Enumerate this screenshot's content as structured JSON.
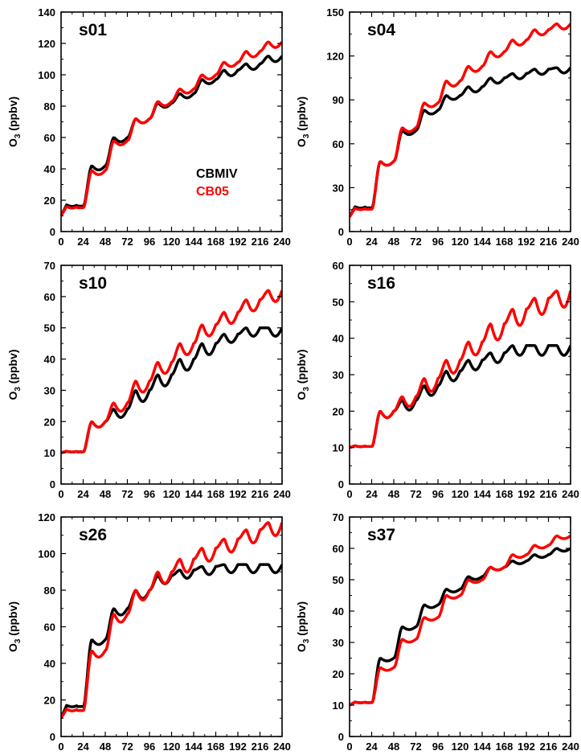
{
  "colors": {
    "CBMIV": "#000000",
    "CB05": "#ff0000"
  },
  "legend": [
    {
      "name": "CBMIV",
      "color": "#000000"
    },
    {
      "name": "CB05",
      "color": "#ff0000"
    }
  ],
  "ylabel": {
    "main": "O",
    "sub": "3",
    "rest": " (ppbv)"
  },
  "chart_data": [
    {
      "type": "line",
      "id": "s01",
      "title": "s01",
      "xlim": [
        0,
        240
      ],
      "ylim": [
        0,
        140
      ],
      "xticks": [
        0,
        24,
        48,
        72,
        96,
        120,
        144,
        168,
        192,
        216,
        240
      ],
      "yticks": [
        0,
        20,
        40,
        60,
        80,
        100,
        120,
        140
      ],
      "grid": false,
      "series": [
        {
          "name": "CBMIV",
          "day_vals": [
            10,
            17,
            42,
            60,
            72,
            82,
            88,
            97,
            103,
            107,
            112
          ],
          "swing": [
            2,
            3,
            3,
            3,
            3,
            3,
            3,
            4,
            4,
            4
          ]
        },
        {
          "name": "CB05",
          "day_vals": [
            10,
            16,
            39,
            58,
            72,
            83,
            91,
            100,
            108,
            115,
            121
          ],
          "swing": [
            2,
            3,
            3,
            3,
            3,
            3,
            3,
            3,
            4,
            4
          ]
        }
      ]
    },
    {
      "type": "line",
      "id": "s04",
      "title": "s04",
      "xlim": [
        0,
        240
      ],
      "ylim": [
        0,
        150
      ],
      "xticks": [
        0,
        24,
        48,
        72,
        96,
        120,
        144,
        168,
        192,
        216,
        240
      ],
      "yticks": [
        0,
        30,
        60,
        90,
        120,
        150
      ],
      "grid": false,
      "series": [
        {
          "name": "CBMIV",
          "day_vals": [
            10,
            17,
            48,
            69,
            83,
            93,
            99,
            105,
            108,
            111,
            112
          ],
          "swing": [
            2,
            3,
            3,
            3,
            3,
            4,
            4,
            4,
            4,
            4
          ]
        },
        {
          "name": "CB05",
          "day_vals": [
            10,
            16,
            48,
            71,
            88,
            103,
            113,
            123,
            131,
            138,
            142
          ],
          "swing": [
            2,
            3,
            3,
            3,
            4,
            4,
            4,
            4,
            4,
            4
          ]
        }
      ]
    },
    {
      "type": "line",
      "id": "s10",
      "title": "s10",
      "xlim": [
        0,
        240
      ],
      "ylim": [
        0,
        70
      ],
      "xticks": [
        0,
        24,
        48,
        72,
        96,
        120,
        144,
        168,
        192,
        216,
        240
      ],
      "yticks": [
        0,
        10,
        20,
        30,
        40,
        50,
        60,
        70
      ],
      "grid": false,
      "series": [
        {
          "name": "CBMIV",
          "day_vals": [
            10,
            10.5,
            20,
            24,
            30,
            35,
            40,
            45,
            48,
            50,
            50
          ],
          "swing": [
            0.5,
            2,
            3,
            4,
            4,
            4,
            4,
            3,
            3,
            3
          ]
        },
        {
          "name": "CB05",
          "day_vals": [
            10,
            10.5,
            20,
            26,
            33,
            39,
            45,
            51,
            55,
            59,
            62
          ],
          "swing": [
            0.5,
            2,
            3,
            4,
            4,
            4,
            4,
            4,
            4,
            4
          ]
        }
      ]
    },
    {
      "type": "line",
      "id": "s16",
      "title": "s16",
      "xlim": [
        0,
        240
      ],
      "ylim": [
        0,
        60
      ],
      "xticks": [
        0,
        24,
        48,
        72,
        96,
        120,
        144,
        168,
        192,
        216,
        240
      ],
      "yticks": [
        0,
        10,
        20,
        30,
        40,
        50,
        60
      ],
      "grid": false,
      "series": [
        {
          "name": "CBMIV",
          "day_vals": [
            10,
            10.5,
            20,
            23,
            27,
            31,
            34,
            36,
            38,
            38,
            38
          ],
          "swing": [
            0.5,
            2,
            3,
            3,
            3,
            3,
            3,
            3,
            3,
            3
          ]
        },
        {
          "name": "CB05",
          "day_vals": [
            10,
            10.5,
            20,
            24,
            29,
            34,
            39,
            44,
            48,
            51,
            53
          ],
          "swing": [
            0.5,
            2,
            3,
            4,
            4,
            4,
            5,
            5,
            5,
            5
          ]
        }
      ]
    },
    {
      "type": "line",
      "id": "s26",
      "title": "s26",
      "xlim": [
        0,
        240
      ],
      "ylim": [
        0,
        120
      ],
      "xticks": [
        0,
        24,
        48,
        72,
        96,
        120,
        144,
        168,
        192,
        216,
        240
      ],
      "yticks": [
        0,
        20,
        40,
        60,
        80,
        100,
        120
      ],
      "grid": false,
      "series": [
        {
          "name": "CBMIV",
          "day_vals": [
            10,
            17,
            53,
            70,
            80,
            88,
            91,
            93,
            94,
            94,
            94
          ],
          "swing": [
            1.5,
            3,
            4,
            5,
            5,
            5,
            5,
            5,
            5,
            5
          ]
        },
        {
          "name": "CB05",
          "day_vals": [
            10,
            15,
            47,
            67,
            80,
            90,
            97,
            103,
            108,
            113,
            117
          ],
          "swing": [
            2,
            4,
            5,
            6,
            7,
            8,
            8,
            8,
            8,
            8
          ]
        }
      ]
    },
    {
      "type": "line",
      "id": "s37",
      "title": "s37",
      "xlim": [
        0,
        240
      ],
      "ylim": [
        0,
        70
      ],
      "xticks": [
        0,
        24,
        48,
        72,
        96,
        120,
        144,
        168,
        192,
        216,
        240
      ],
      "yticks": [
        0,
        10,
        20,
        30,
        40,
        50,
        60,
        70
      ],
      "grid": false,
      "series": [
        {
          "name": "CBMIV",
          "day_vals": [
            10,
            11,
            25,
            35,
            42,
            47,
            51,
            54,
            56,
            58,
            60
          ],
          "swing": [
            0.5,
            1,
            1,
            1,
            1,
            1,
            1,
            1,
            1,
            1
          ]
        },
        {
          "name": "CB05",
          "day_vals": [
            10,
            11,
            22,
            31,
            38,
            45,
            50,
            54,
            58,
            61,
            64
          ],
          "swing": [
            0.5,
            1,
            1,
            1,
            1,
            1,
            1,
            1,
            1,
            1
          ]
        }
      ]
    }
  ]
}
